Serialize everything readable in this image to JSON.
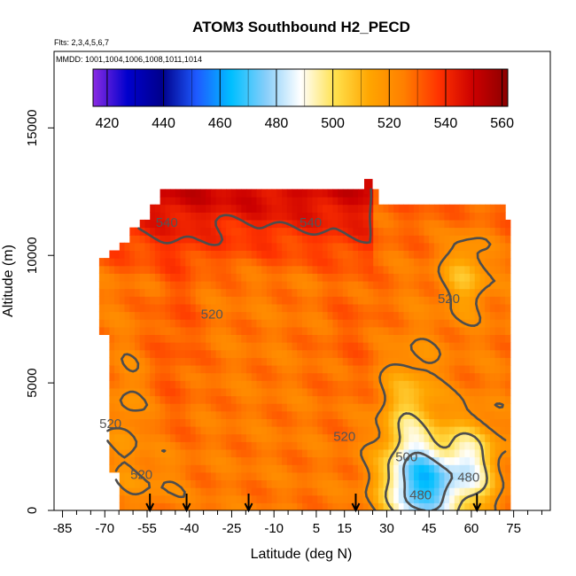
{
  "chart_data": {
    "type": "heatmap",
    "title": "ATOM3 Southbound H2_PECD",
    "flights_note": "Flts: 2,3,4,5,6,7",
    "mmdd_note": "MMDD: 1001,1004,1006,1008,1011,1014",
    "xlabel": "Latitude (deg N)",
    "ylabel": "Altitude (m)",
    "xlim": [
      -88,
      88
    ],
    "ylim": [
      0,
      18000
    ],
    "x_ticks": [
      -85,
      -70,
      -55,
      -40,
      -25,
      -10,
      5,
      15,
      30,
      45,
      60,
      75
    ],
    "x_minor_ticks": [
      -80,
      -75,
      -65,
      -60,
      -50,
      -45,
      -35,
      -30,
      -20,
      -15,
      -5,
      0,
      10,
      20,
      25,
      35,
      40,
      50,
      55,
      65,
      70,
      80,
      85
    ],
    "y_ticks": [
      0,
      5000,
      10000,
      15000
    ],
    "colorbar": {
      "min": 415,
      "max": 562,
      "ticks": [
        420,
        440,
        460,
        480,
        500,
        520,
        540,
        560
      ],
      "colors": [
        "#8a2be2",
        "#0000cd",
        "#00008b",
        "#1e5aff",
        "#00bfff",
        "#87cefa",
        "#ffffff",
        "#ffe14d",
        "#ffa500",
        "#ff7f00",
        "#ff3300",
        "#cc0000",
        "#8b0000"
      ]
    },
    "contour_labels": [
      {
        "text": "540",
        "lat": -48,
        "alt": 11300
      },
      {
        "text": "540",
        "lat": 3,
        "alt": 11300
      },
      {
        "text": "520",
        "lat": -32,
        "alt": 7700
      },
      {
        "text": "520",
        "lat": 52,
        "alt": 8300
      },
      {
        "text": "520",
        "lat": -68,
        "alt": 3400
      },
      {
        "text": "520",
        "lat": 15,
        "alt": 2900
      },
      {
        "text": "520",
        "lat": -57,
        "alt": 1400
      },
      {
        "text": "500",
        "lat": 37,
        "alt": 2100
      },
      {
        "text": "480",
        "lat": 59,
        "alt": 1300
      },
      {
        "text": "480",
        "lat": 42,
        "alt": 600
      }
    ],
    "sounding_markers": [
      -54,
      -41,
      -19,
      19,
      62
    ]
  }
}
